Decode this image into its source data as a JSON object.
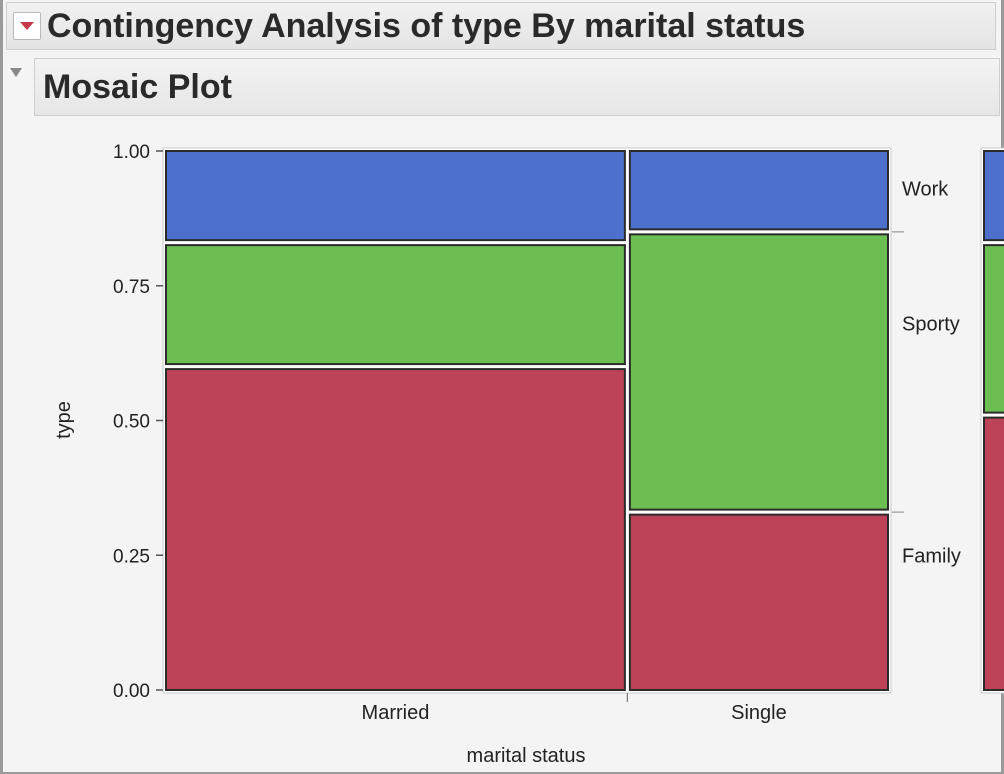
{
  "report": {
    "title": "Contingency Analysis of type By marital status",
    "section_title": "Mosaic Plot"
  },
  "chart_data": {
    "type": "mosaic",
    "xlabel": "marital status",
    "ylabel": "type",
    "ylim": [
      0,
      1
    ],
    "yticks": [
      "0.00",
      "0.25",
      "0.50",
      "0.75",
      "1.00"
    ],
    "categories": [
      "Married",
      "Single"
    ],
    "category_widths": [
      0.64,
      0.36
    ],
    "series": [
      {
        "name": "Family",
        "color": "#bd4359",
        "values": [
          0.6,
          0.33
        ]
      },
      {
        "name": "Sporty",
        "color": "#6cbd52",
        "values": [
          0.23,
          0.52
        ]
      },
      {
        "name": "Work",
        "color": "#4d70cc",
        "values": [
          0.17,
          0.15
        ]
      }
    ],
    "overall_labels": [
      "Work",
      "Sporty",
      "Family"
    ],
    "overall": [
      0.17,
      0.32,
      0.51
    ]
  }
}
